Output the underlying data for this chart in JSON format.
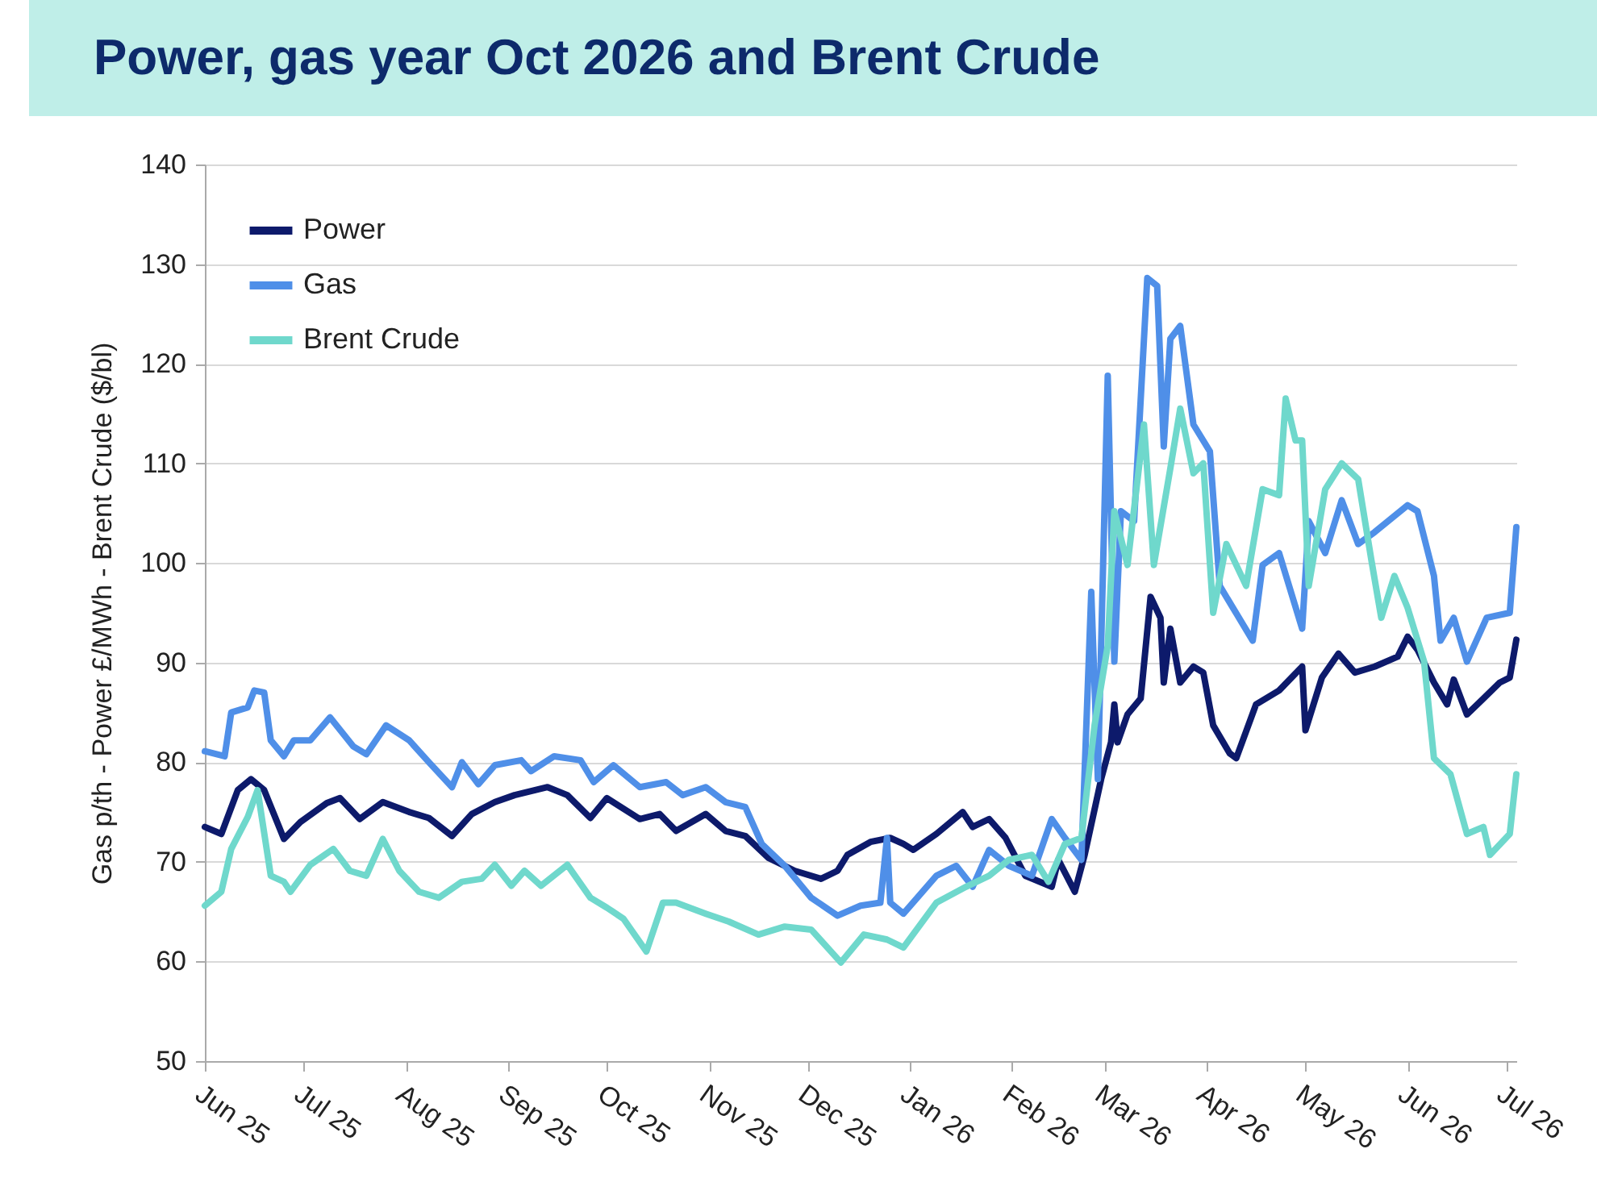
{
  "chart_data": {
    "type": "line",
    "title": "Power, gas year Oct 2026 and Brent Crude",
    "ylabel": "Gas p/th - Power £/MWh - Brent Crude ($/bl)",
    "xlim": [
      "2025-06-01",
      "2026-07-04"
    ],
    "xticks": [
      {
        "value": "2025-06-01",
        "label": "Jun 25"
      },
      {
        "value": "2025-07-01",
        "label": "Jul 25"
      },
      {
        "value": "2025-08-01",
        "label": "Aug 25"
      },
      {
        "value": "2025-09-01",
        "label": "Sep 25"
      },
      {
        "value": "2025-10-01",
        "label": "Oct 25"
      },
      {
        "value": "2025-11-01",
        "label": "Nov 25"
      },
      {
        "value": "2025-12-01",
        "label": "Dec 25"
      },
      {
        "value": "2026-01-01",
        "label": "Jan 26"
      },
      {
        "value": "2026-02-01",
        "label": "Feb 26"
      },
      {
        "value": "2026-03-01",
        "label": "Mar 26"
      },
      {
        "value": "2026-04-01",
        "label": "Apr 26"
      },
      {
        "value": "2026-05-01",
        "label": "May 26"
      },
      {
        "value": "2026-06-01",
        "label": "Jun 26"
      },
      {
        "value": "2026-07-01",
        "label": "Jul 26"
      }
    ],
    "ylim": [
      50,
      140
    ],
    "yticks": [
      50,
      60,
      70,
      80,
      90,
      100,
      110,
      120,
      130,
      140
    ],
    "grid": "y",
    "legend": "top left",
    "line_style": "solid",
    "series": [
      {
        "name": "Power",
        "color": "#0d1a6b",
        "x": [
          "2025-06-01",
          "2025-06-06",
          "2025-06-11",
          "2025-06-15",
          "2025-06-19",
          "2025-06-25",
          "2025-06-30",
          "2025-07-08",
          "2025-07-12",
          "2025-07-18",
          "2025-07-25",
          "2025-08-02",
          "2025-08-08",
          "2025-08-15",
          "2025-08-21",
          "2025-08-28",
          "2025-09-03",
          "2025-09-13",
          "2025-09-19",
          "2025-09-26",
          "2025-10-01",
          "2025-10-11",
          "2025-10-17",
          "2025-10-22",
          "2025-10-31",
          "2025-11-06",
          "2025-11-12",
          "2025-11-19",
          "2025-11-27",
          "2025-12-05",
          "2025-12-10",
          "2025-12-13",
          "2025-12-20",
          "2025-12-26",
          "2025-12-30",
          "2026-01-02",
          "2026-01-09",
          "2026-01-17",
          "2026-01-20",
          "2026-01-25",
          "2026-01-30",
          "2026-02-05",
          "2026-02-13",
          "2026-02-15",
          "2026-02-20",
          "2026-02-23",
          "2026-02-28",
          "2026-03-03",
          "2026-03-04",
          "2026-03-05",
          "2026-03-08",
          "2026-03-12",
          "2026-03-15",
          "2026-03-18",
          "2026-03-19",
          "2026-03-21",
          "2026-03-24",
          "2026-03-28",
          "2026-03-31",
          "2026-04-03",
          "2026-04-08",
          "2026-04-10",
          "2026-04-16",
          "2026-04-23",
          "2026-04-30",
          "2026-05-01",
          "2026-05-06",
          "2026-05-11",
          "2026-05-16",
          "2026-05-22",
          "2026-05-29",
          "2026-06-01",
          "2026-06-04",
          "2026-06-09",
          "2026-06-13",
          "2026-06-15",
          "2026-06-19",
          "2026-06-24",
          "2026-06-29",
          "2026-07-02",
          "2026-07-04"
        ],
        "values": [
          73.5,
          72.8,
          77.2,
          78.3,
          77.2,
          72.3,
          74,
          75.9,
          76.4,
          74.3,
          76,
          75,
          74.4,
          72.6,
          74.8,
          76,
          76.7,
          77.5,
          76.7,
          74.4,
          76.4,
          74.3,
          74.8,
          73.1,
          74.8,
          73.1,
          72.6,
          70.4,
          69.1,
          68.3,
          69.1,
          70.7,
          72,
          72.4,
          71.8,
          71.2,
          72.8,
          75,
          73.5,
          74.3,
          72.4,
          68.6,
          67.5,
          70.2,
          67,
          70.7,
          78.3,
          82,
          85.8,
          82,
          84.8,
          86.4,
          96.6,
          94.5,
          88,
          93.4,
          88,
          89.6,
          89,
          83.7,
          80.9,
          80.4,
          85.8,
          87.2,
          89.6,
          83.2,
          88.5,
          90.9,
          89,
          89.6,
          90.6,
          92.6,
          91.3,
          88,
          85.8,
          88.3,
          84.8,
          86.4,
          88,
          88.5,
          92.3
        ]
      },
      {
        "name": "Gas",
        "color": "#4f8fe8",
        "x": [
          "2025-06-01",
          "2025-06-07",
          "2025-06-09",
          "2025-06-14",
          "2025-06-16",
          "2025-06-19",
          "2025-06-21",
          "2025-06-25",
          "2025-06-28",
          "2025-07-03",
          "2025-07-09",
          "2025-07-16",
          "2025-07-20",
          "2025-07-26",
          "2025-08-02",
          "2025-08-08",
          "2025-08-15",
          "2025-08-18",
          "2025-08-23",
          "2025-08-28",
          "2025-09-05",
          "2025-09-08",
          "2025-09-15",
          "2025-09-23",
          "2025-09-27",
          "2025-10-03",
          "2025-10-11",
          "2025-10-19",
          "2025-10-24",
          "2025-10-31",
          "2025-11-06",
          "2025-11-12",
          "2025-11-17",
          "2025-11-24",
          "2025-12-02",
          "2025-12-10",
          "2025-12-17",
          "2025-12-23",
          "2025-12-25",
          "2025-12-26",
          "2025-12-30",
          "2026-01-09",
          "2026-01-15",
          "2026-01-20",
          "2026-01-25",
          "2026-01-31",
          "2026-02-07",
          "2026-02-13",
          "2026-02-17",
          "2026-02-22",
          "2026-02-25",
          "2026-02-27",
          "2026-03-02",
          "2026-03-04",
          "2026-03-06",
          "2026-03-10",
          "2026-03-14",
          "2026-03-17",
          "2026-03-19",
          "2026-03-21",
          "2026-03-24",
          "2026-03-28",
          "2026-04-02",
          "2026-04-05",
          "2026-04-09",
          "2026-04-15",
          "2026-04-18",
          "2026-04-23",
          "2026-04-30",
          "2026-05-02",
          "2026-05-07",
          "2026-05-12",
          "2026-05-17",
          "2026-05-22",
          "2026-06-01",
          "2026-06-04",
          "2026-06-09",
          "2026-06-11",
          "2026-06-15",
          "2026-06-19",
          "2026-06-25",
          "2026-07-02",
          "2026-07-04"
        ],
        "values": [
          81.1,
          80.6,
          85,
          85.5,
          87.2,
          87,
          82.2,
          80.6,
          82.2,
          82.2,
          84.5,
          81.6,
          80.8,
          83.7,
          82.2,
          80,
          77.5,
          80,
          77.8,
          79.7,
          80.2,
          79.1,
          80.6,
          80.2,
          78,
          79.7,
          77.5,
          78,
          76.7,
          77.5,
          76,
          75.5,
          71.8,
          69.6,
          66.4,
          64.6,
          65.6,
          65.9,
          72.4,
          65.9,
          64.8,
          68.6,
          69.6,
          67.5,
          71.2,
          69.6,
          68.6,
          74.3,
          72.4,
          70.2,
          97.1,
          78.3,
          118.8,
          90.1,
          105.2,
          104.2,
          128.6,
          127.8,
          111.7,
          122.5,
          123.8,
          113.9,
          111.2,
          97.7,
          95.5,
          92.2,
          99.8,
          101,
          93.4,
          104.2,
          101,
          106.3,
          101.9,
          103.1,
          105.8,
          105.2,
          98.7,
          92.2,
          94.5,
          90.1,
          94.5,
          95,
          103.6
        ]
      },
      {
        "name": "Brent Crude",
        "color": "#6fd8cc",
        "x": [
          "2025-06-01",
          "2025-06-06",
          "2025-06-09",
          "2025-06-14",
          "2025-06-17",
          "2025-06-21",
          "2025-06-25",
          "2025-06-27",
          "2025-07-03",
          "2025-07-10",
          "2025-07-15",
          "2025-07-20",
          "2025-07-25",
          "2025-07-30",
          "2025-08-05",
          "2025-08-11",
          "2025-08-18",
          "2025-08-24",
          "2025-08-28",
          "2025-09-02",
          "2025-09-06",
          "2025-09-11",
          "2025-09-19",
          "2025-09-26",
          "2025-10-01",
          "2025-10-06",
          "2025-10-13",
          "2025-10-18",
          "2025-10-22",
          "2025-10-31",
          "2025-11-07",
          "2025-11-16",
          "2025-11-24",
          "2025-12-02",
          "2025-12-11",
          "2025-12-18",
          "2025-12-25",
          "2025-12-30",
          "2026-01-09",
          "2026-01-18",
          "2026-01-25",
          "2026-01-31",
          "2026-02-07",
          "2026-02-12",
          "2026-02-17",
          "2026-02-22",
          "2026-02-26",
          "2026-03-02",
          "2026-03-04",
          "2026-03-08",
          "2026-03-13",
          "2026-03-16",
          "2026-03-21",
          "2026-03-24",
          "2026-03-28",
          "2026-03-31",
          "2026-04-03",
          "2026-04-07",
          "2026-04-13",
          "2026-04-18",
          "2026-04-23",
          "2026-04-25",
          "2026-04-28",
          "2026-04-30",
          "2026-05-02",
          "2026-05-07",
          "2026-05-12",
          "2026-05-17",
          "2026-05-21",
          "2026-05-24",
          "2026-05-28",
          "2026-06-01",
          "2026-06-06",
          "2026-06-09",
          "2026-06-14",
          "2026-06-19",
          "2026-06-24",
          "2026-06-26",
          "2026-07-02",
          "2026-07-04"
        ],
        "values": [
          65.6,
          67,
          71.3,
          74.5,
          77.2,
          68.6,
          68,
          67,
          69.7,
          71.3,
          69.1,
          68.6,
          72.3,
          69.1,
          67,
          66.4,
          68,
          68.3,
          69.7,
          67.6,
          69.1,
          67.6,
          69.7,
          66.4,
          65.4,
          64.3,
          61,
          65.9,
          65.9,
          64.8,
          64,
          62.7,
          63.5,
          63.2,
          59.9,
          62.7,
          62.2,
          61.4,
          65.9,
          67.5,
          68.6,
          70.2,
          70.7,
          68,
          71.8,
          72.4,
          83.7,
          91.7,
          105.2,
          99.8,
          113.9,
          99.8,
          109.5,
          115.5,
          109,
          110,
          95,
          101.9,
          97.7,
          107.4,
          106.8,
          116.5,
          112.3,
          112.3,
          97.7,
          107.4,
          110,
          108.4,
          100.3,
          94.5,
          98.7,
          95.5,
          90.1,
          80.4,
          78.8,
          72.8,
          73.5,
          70.7,
          72.8,
          78.8
        ]
      }
    ]
  }
}
